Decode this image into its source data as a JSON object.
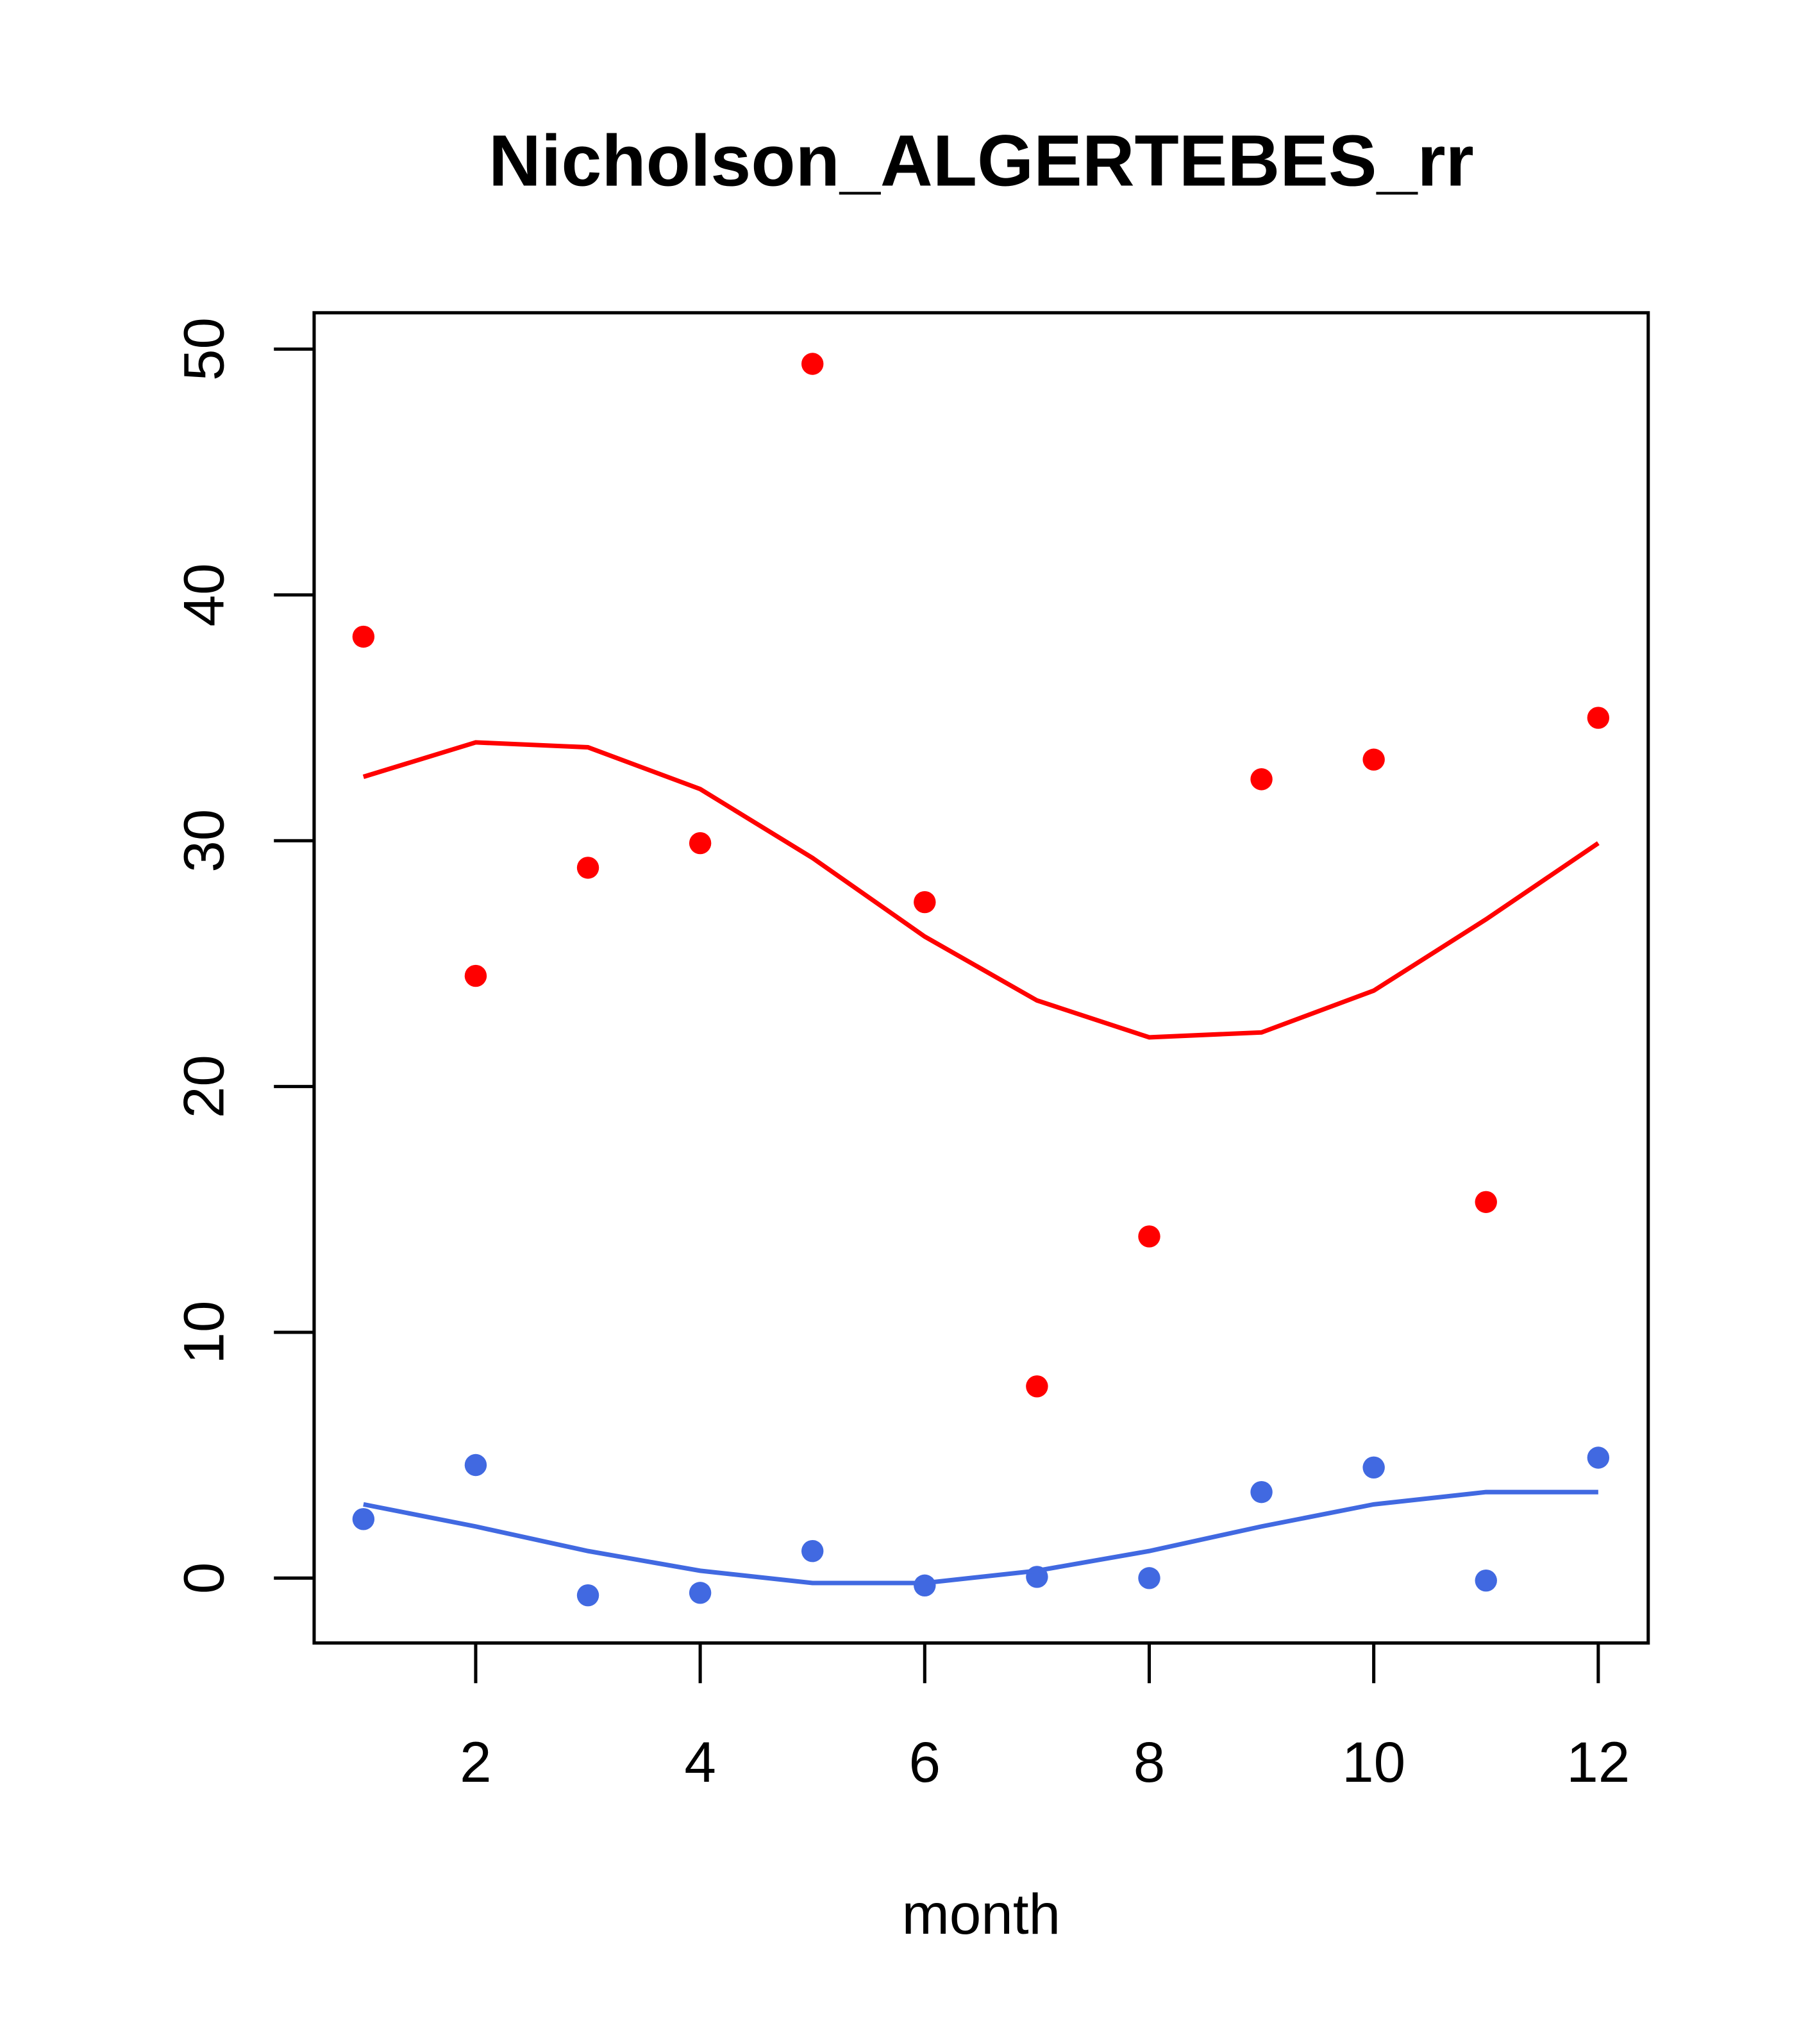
{
  "chart_data": {
    "type": "scatter",
    "title": "Nicholson_ALGERTEBES_rr",
    "xlabel": "month",
    "ylabel": "",
    "xlim": [
      0.56,
      12.45
    ],
    "ylim": [
      -2.6,
      51.5
    ],
    "x_ticks": [
      2,
      4,
      6,
      8,
      10,
      12
    ],
    "x_tick_labels": [
      "2",
      "4",
      "6",
      "8",
      "10",
      "12"
    ],
    "y_ticks": [
      0,
      10,
      20,
      30,
      40,
      50
    ],
    "y_tick_labels": [
      "0",
      "10",
      "20",
      "30",
      "40",
      "50"
    ],
    "grid": false,
    "x": [
      1,
      2,
      3,
      4,
      5,
      6,
      7,
      8,
      9,
      10,
      11,
      12
    ],
    "series": [
      {
        "name": "red points",
        "kind": "points",
        "color": "#ff0000",
        "values": [
          38.3,
          24.5,
          28.9,
          29.9,
          49.4,
          27.5,
          7.8,
          13.9,
          32.5,
          33.3,
          15.3,
          35.0
        ]
      },
      {
        "name": "red fit",
        "kind": "line",
        "color": "#ff0000",
        "values": [
          32.6,
          34.0,
          33.8,
          32.1,
          29.3,
          26.1,
          23.5,
          22.0,
          22.2,
          23.9,
          26.8,
          29.9
        ]
      },
      {
        "name": "blue points",
        "kind": "points",
        "color": "#4169e1",
        "values": [
          2.4,
          4.6,
          -0.7,
          -0.6,
          1.1,
          -0.3,
          0.05,
          0.0,
          3.5,
          4.5,
          -0.1,
          4.9
        ]
      },
      {
        "name": "blue fit",
        "kind": "line",
        "color": "#4169e1",
        "values": [
          3.0,
          2.1,
          1.1,
          0.3,
          -0.2,
          -0.2,
          0.3,
          1.1,
          2.1,
          3.0,
          3.5,
          3.5
        ]
      }
    ]
  }
}
